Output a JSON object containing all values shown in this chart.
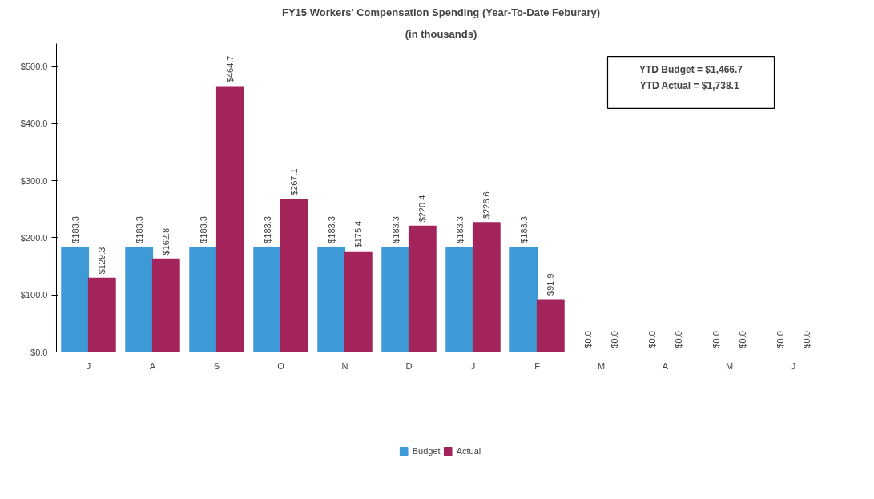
{
  "chart_data": {
    "type": "bar",
    "title": "FY15 Workers' Compensation Spending (Year-To-Date Feburary)",
    "subtitle": "(in thousands)",
    "categories": [
      "J",
      "A",
      "S",
      "O",
      "N",
      "D",
      "J",
      "F",
      "M",
      "A",
      "M",
      "J"
    ],
    "series": [
      {
        "name": "Budget",
        "color": "#3d9ad6",
        "values": [
          183.3,
          183.3,
          183.3,
          183.3,
          183.3,
          183.3,
          183.3,
          183.3,
          0,
          0,
          0,
          0
        ],
        "value_labels": [
          "$183.3",
          "$183.3",
          "$183.3",
          "$183.3",
          "$183.3",
          "$183.3",
          "$183.3",
          "$183.3",
          "$0.0",
          "$0.0",
          "$0.0",
          "$0.0"
        ]
      },
      {
        "name": "Actual",
        "color": "#a3245a",
        "values": [
          129.3,
          162.8,
          464.7,
          267.1,
          175.4,
          220.4,
          226.6,
          91.9,
          0,
          0,
          0,
          0
        ],
        "value_labels": [
          "$129.3",
          "$162.8",
          "$464.7",
          "$267.1",
          "$175.4",
          "$220.4",
          "$226.6",
          "$91.9",
          "$0.0",
          "$0.0",
          "$0.0",
          "$0.0"
        ]
      }
    ],
    "ylim": [
      0,
      540
    ],
    "yticks": [
      {
        "value": 0,
        "label": "$0.0"
      },
      {
        "value": 100,
        "label": "$100.0"
      },
      {
        "value": 200,
        "label": "$200.0"
      },
      {
        "value": 300,
        "label": "$300.0"
      },
      {
        "value": 400,
        "label": "$400.0"
      },
      {
        "value": 500,
        "label": "$500.0"
      }
    ],
    "annotations": [
      "YTD Budget = $1,466.7",
      "YTD Actual  = $1,738.1"
    ],
    "grid": false,
    "legend": "bottom"
  }
}
